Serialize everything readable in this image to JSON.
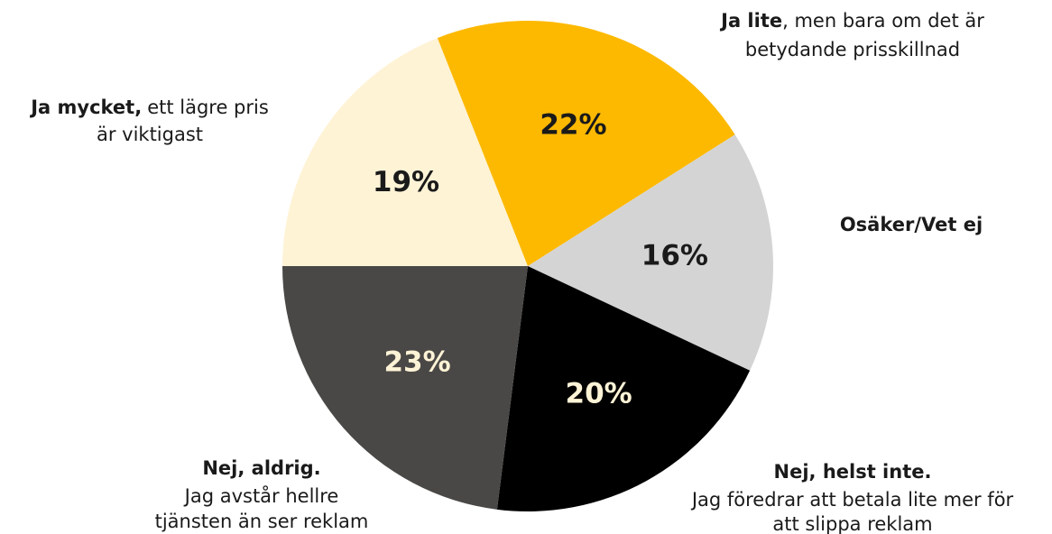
{
  "chart_data": {
    "type": "pie",
    "categories": [
      "Ja mycket",
      "Ja lite",
      "Osäker/Vet ej",
      "Nej, helst inte",
      "Nej, aldrig"
    ],
    "values": [
      19,
      22,
      16,
      20,
      23
    ],
    "value_labels": [
      "19%",
      "22%",
      "16%",
      "20%",
      "23%"
    ],
    "colors": [
      "#fff3d6",
      "#fdb900",
      "#d4d4d4",
      "#000000",
      "#4a4846"
    ],
    "label_colors": [
      "#1a1a1a",
      "#1a1a1a",
      "#1a1a1a",
      "#fff3d6",
      "#fff3d6"
    ],
    "labels": [
      {
        "bold": "Ja mycket,",
        "line1": "ett lägre pris",
        "line2": "är viktigast"
      },
      {
        "bold": "Ja lite",
        "line1": ", men bara om det är",
        "line2": "betydande prisskillnad"
      },
      {
        "bold": "Osäker/Vet ej"
      },
      {
        "bold": "Nej, helst inte.",
        "line1": "Jag föredrar att betala lite mer för",
        "line2": "att slippa reklam"
      },
      {
        "bold": "Nej, aldrig.",
        "line1": "Jag avstår hellre",
        "line2": "tjänsten än ser reklam"
      }
    ]
  }
}
